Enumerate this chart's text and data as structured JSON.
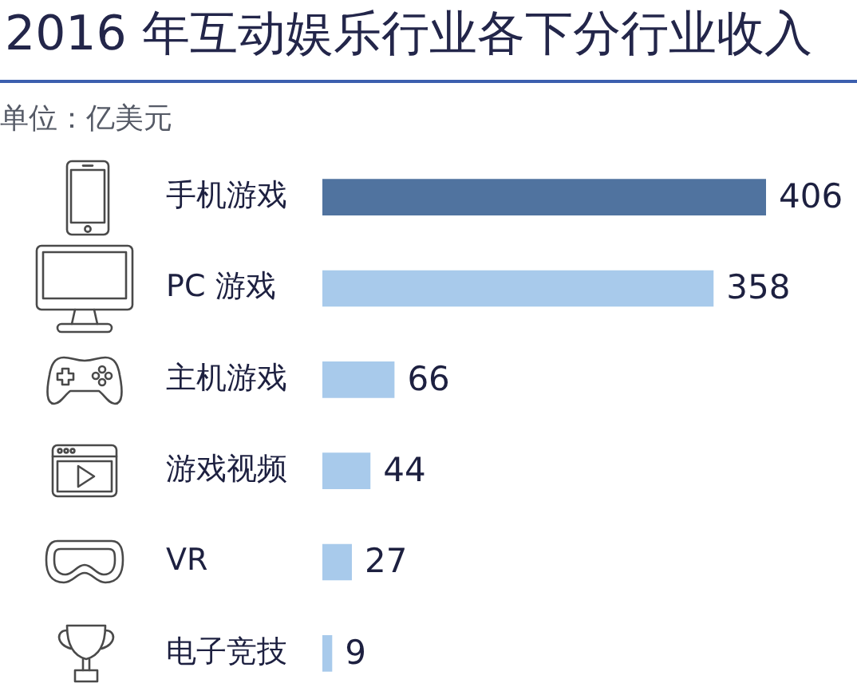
{
  "chart_data": {
    "type": "bar",
    "orientation": "horizontal",
    "title": "2016 年互动娱乐行业各下分行业收入",
    "subtitle": "单位：亿美元",
    "categories": [
      "手机游戏",
      "PC 游戏",
      "主机游戏",
      "游戏视频",
      "VR",
      "电子竞技"
    ],
    "values": [
      406,
      358,
      66,
      44,
      27,
      9
    ],
    "colors": [
      "#50739f",
      "#a8caeb",
      "#a8caeb",
      "#a8caeb",
      "#a8caeb",
      "#a8caeb"
    ],
    "data_labels": true
  }
}
